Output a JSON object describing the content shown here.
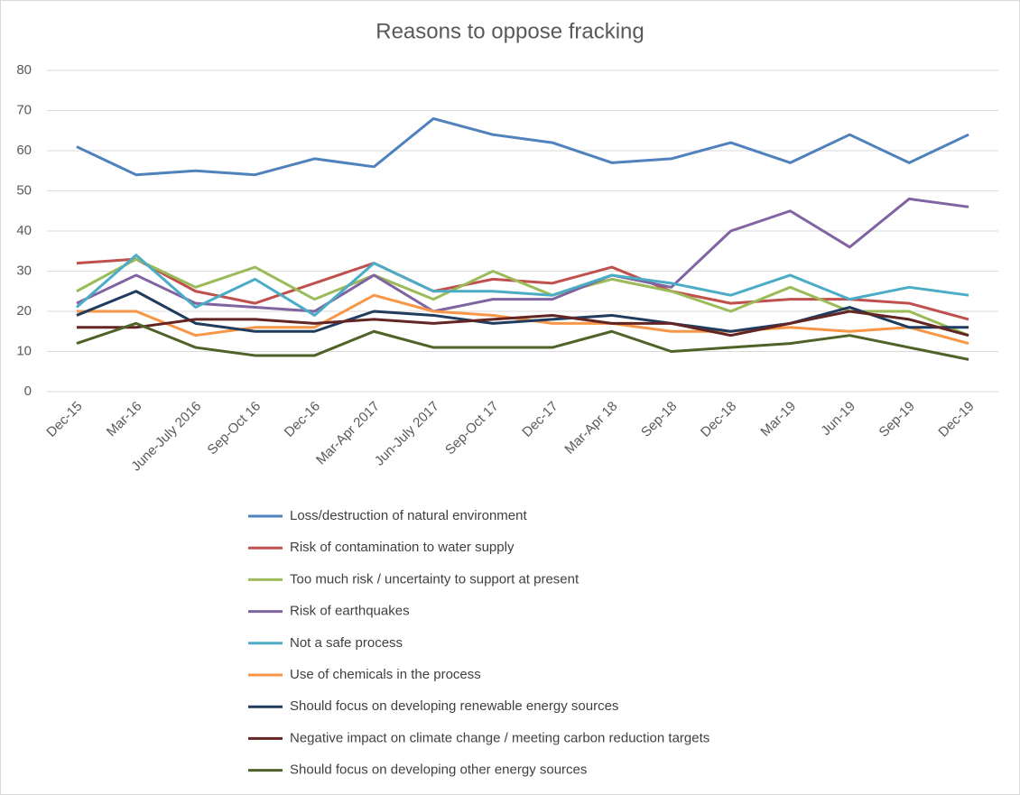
{
  "chart_data": {
    "type": "line",
    "title": "Reasons to oppose fracking",
    "categories": [
      "Dec-15",
      "Mar-16",
      "June-July 2016",
      "Sep-Oct 16",
      "Dec-16",
      "Mar-Apr 2017",
      "Jun-July 2017",
      "Sep-Oct 17",
      "Dec-17",
      "Mar-Apr 18",
      "Sep-18",
      "Dec-18",
      "Mar-19",
      "Jun-19",
      "Sep-19",
      "Dec-19"
    ],
    "series": [
      {
        "name": "Loss/destruction of natural environment",
        "color": "#4f81bd",
        "values": [
          61,
          54,
          55,
          54,
          58,
          56,
          68,
          64,
          62,
          57,
          58,
          62,
          57,
          64,
          57,
          64
        ]
      },
      {
        "name": "Risk of contamination to water supply",
        "color": "#c0504d",
        "values": [
          32,
          33,
          25,
          22,
          27,
          32,
          25,
          28,
          27,
          31,
          25,
          22,
          23,
          23,
          22,
          18
        ]
      },
      {
        "name": "Too much risk / uncertainty to support at present",
        "color": "#9bbb59",
        "values": [
          25,
          33,
          26,
          31,
          23,
          29,
          23,
          30,
          24,
          28,
          25,
          20,
          26,
          20,
          20,
          14
        ]
      },
      {
        "name": "Risk of earthquakes",
        "color": "#8064a2",
        "values": [
          22,
          29,
          22,
          21,
          20,
          29,
          20,
          23,
          23,
          29,
          26,
          40,
          45,
          36,
          48,
          46
        ]
      },
      {
        "name": "Not a safe process",
        "color": "#4bacc6",
        "values": [
          21,
          34,
          21,
          28,
          19,
          32,
          25,
          25,
          24,
          29,
          27,
          24,
          29,
          23,
          26,
          24
        ]
      },
      {
        "name": "Use of chemicals in the process",
        "color": "#f79646",
        "values": [
          20,
          20,
          14,
          16,
          16,
          24,
          20,
          19,
          17,
          17,
          15,
          15,
          16,
          15,
          16,
          12
        ]
      },
      {
        "name": "Should focus on developing renewable energy sources",
        "color": "#1f3b5e",
        "values": [
          19,
          25,
          17,
          15,
          15,
          20,
          19,
          17,
          18,
          19,
          17,
          15,
          17,
          21,
          16,
          16
        ]
      },
      {
        "name": "Negative impact on climate change / meeting carbon reduction targets",
        "color": "#632523",
        "values": [
          16,
          16,
          18,
          18,
          17,
          18,
          17,
          18,
          19,
          17,
          17,
          14,
          17,
          20,
          18,
          14
        ]
      },
      {
        "name": "Should focus on developing other energy sources",
        "color": "#4f6228",
        "values": [
          12,
          17,
          11,
          9,
          9,
          15,
          11,
          11,
          11,
          15,
          10,
          11,
          12,
          14,
          11,
          8
        ]
      }
    ],
    "ylim": [
      0,
      80
    ],
    "yticks": [
      0,
      10,
      20,
      30,
      40,
      50,
      60,
      70,
      80
    ],
    "grid": true
  }
}
